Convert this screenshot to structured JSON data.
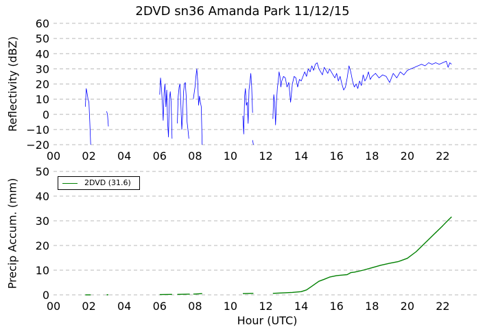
{
  "title": "2DVD sn36 Amanda Park 11/12/15",
  "chart_data": [
    {
      "type": "line",
      "ylabel": "Reflectivity (dBZ)",
      "xlabel": "",
      "xlim": [
        0,
        24
      ],
      "ylim": [
        -20,
        60
      ],
      "xticks": [
        "00",
        "02",
        "04",
        "06",
        "08",
        "10",
        "12",
        "14",
        "16",
        "18",
        "20",
        "22"
      ],
      "yticks": [
        "60",
        "50",
        "40",
        "30",
        "20",
        "10",
        "0",
        "−10",
        "−20"
      ],
      "grid": "horizontal dashed",
      "color": "#0000ff",
      "series": [
        {
          "segments": [
            [
              [
                1.8,
                5
              ],
              [
                1.85,
                17
              ],
              [
                1.9,
                14
              ],
              [
                1.95,
                10
              ],
              [
                2.0,
                8
              ],
              [
                2.05,
                -5
              ],
              [
                2.1,
                -20
              ]
            ],
            [
              [
                3.0,
                2
              ],
              [
                3.05,
                0
              ],
              [
                3.1,
                -8
              ]
            ],
            [
              [
                6.0,
                13
              ],
              [
                6.05,
                24
              ],
              [
                6.1,
                18
              ],
              [
                6.15,
                8
              ],
              [
                6.2,
                -4
              ],
              [
                6.25,
                14
              ],
              [
                6.3,
                20
              ],
              [
                6.35,
                5
              ],
              [
                6.4,
                16
              ],
              [
                6.45,
                -6
              ],
              [
                6.5,
                -15
              ],
              [
                6.55,
                10
              ],
              [
                6.6,
                15
              ],
              [
                6.65,
                8
              ],
              [
                6.7,
                -16
              ]
            ],
            [
              [
                7.0,
                -6
              ],
              [
                7.05,
                12
              ],
              [
                7.1,
                18
              ],
              [
                7.15,
                20
              ],
              [
                7.2,
                6
              ],
              [
                7.25,
                -10
              ],
              [
                7.3,
                0
              ],
              [
                7.35,
                15
              ],
              [
                7.4,
                20
              ],
              [
                7.45,
                21
              ],
              [
                7.5,
                12
              ],
              [
                7.55,
                -5
              ],
              [
                7.6,
                -10
              ],
              [
                7.65,
                -16
              ]
            ],
            [
              [
                7.9,
                10
              ],
              [
                8.0,
                18
              ],
              [
                8.05,
                25
              ],
              [
                8.1,
                30
              ],
              [
                8.15,
                22
              ],
              [
                8.2,
                6
              ],
              [
                8.25,
                12
              ],
              [
                8.3,
                8
              ],
              [
                8.35,
                5
              ],
              [
                8.4,
                -20
              ]
            ],
            [
              [
                10.7,
                -1
              ],
              [
                10.75,
                -13
              ],
              [
                10.8,
                12
              ],
              [
                10.85,
                17
              ],
              [
                10.9,
                6
              ],
              [
                10.95,
                8
              ],
              [
                11.0,
                -6
              ],
              [
                11.05,
                16
              ],
              [
                11.1,
                21
              ],
              [
                11.15,
                27
              ],
              [
                11.2,
                18
              ],
              [
                11.25,
                1
              ]
            ],
            [
              [
                11.25,
                -17
              ],
              [
                11.3,
                -20
              ]
            ],
            [
              [
                12.4,
                -3
              ],
              [
                12.45,
                13
              ],
              [
                12.5,
                8
              ],
              [
                12.55,
                -7
              ],
              [
                12.6,
                8
              ],
              [
                12.65,
                17
              ],
              [
                12.7,
                22
              ],
              [
                12.75,
                28
              ],
              [
                12.8,
                25
              ],
              [
                12.85,
                18
              ],
              [
                12.9,
                22
              ],
              [
                13.0,
                25
              ],
              [
                13.1,
                24
              ],
              [
                13.2,
                18
              ],
              [
                13.3,
                21
              ],
              [
                13.4,
                8
              ],
              [
                13.5,
                20
              ],
              [
                13.6,
                25
              ],
              [
                13.7,
                24
              ],
              [
                13.8,
                18
              ],
              [
                13.9,
                23
              ],
              [
                14.0,
                22
              ],
              [
                14.1,
                25
              ],
              [
                14.2,
                28
              ],
              [
                14.3,
                25
              ],
              [
                14.4,
                30
              ],
              [
                14.5,
                28
              ],
              [
                14.6,
                32
              ],
              [
                14.7,
                29
              ],
              [
                14.8,
                33
              ],
              [
                14.9,
                34
              ],
              [
                15.0,
                30
              ],
              [
                15.1,
                28
              ],
              [
                15.2,
                26
              ],
              [
                15.3,
                31
              ],
              [
                15.4,
                29
              ],
              [
                15.5,
                27
              ],
              [
                15.6,
                30
              ],
              [
                15.7,
                28
              ],
              [
                15.8,
                26
              ],
              [
                15.9,
                24
              ],
              [
                16.0,
                27
              ],
              [
                16.1,
                22
              ],
              [
                16.2,
                25
              ],
              [
                16.3,
                20
              ],
              [
                16.4,
                16
              ],
              [
                16.5,
                18
              ],
              [
                16.6,
                24
              ],
              [
                16.7,
                32
              ],
              [
                16.8,
                28
              ],
              [
                16.9,
                22
              ],
              [
                17.0,
                18
              ],
              [
                17.1,
                20
              ],
              [
                17.2,
                17
              ],
              [
                17.3,
                22
              ],
              [
                17.4,
                19
              ],
              [
                17.5,
                26
              ],
              [
                17.6,
                22
              ],
              [
                17.7,
                24
              ],
              [
                17.8,
                28
              ],
              [
                17.9,
                23
              ],
              [
                18.0,
                25
              ],
              [
                18.2,
                27
              ],
              [
                18.4,
                24
              ],
              [
                18.6,
                26
              ],
              [
                18.8,
                25
              ],
              [
                19.0,
                21
              ],
              [
                19.2,
                27
              ],
              [
                19.4,
                24
              ],
              [
                19.6,
                28
              ],
              [
                19.8,
                26
              ],
              [
                20.0,
                29
              ],
              [
                20.2,
                30
              ],
              [
                20.4,
                31
              ],
              [
                20.6,
                32
              ],
              [
                20.8,
                33
              ],
              [
                21.0,
                32
              ],
              [
                21.2,
                34
              ],
              [
                21.4,
                33
              ],
              [
                21.6,
                34
              ],
              [
                21.8,
                33
              ],
              [
                22.0,
                34
              ],
              [
                22.2,
                35
              ],
              [
                22.3,
                31
              ],
              [
                22.4,
                34
              ],
              [
                22.5,
                33
              ]
            ]
          ]
        }
      ]
    },
    {
      "type": "line",
      "ylabel": "Precip Accum. (mm)",
      "xlabel": "Hour (UTC)",
      "xlim": [
        0,
        24
      ],
      "ylim": [
        0,
        50
      ],
      "xticks": [
        "00",
        "02",
        "04",
        "06",
        "08",
        "10",
        "12",
        "14",
        "16",
        "18",
        "20",
        "22"
      ],
      "yticks": [
        "50",
        "40",
        "30",
        "20",
        "10",
        "0"
      ],
      "grid": "horizontal dashed",
      "legend": {
        "placement": "top-left",
        "entries": [
          {
            "label": "2DVD (31.6)",
            "color": "#008000"
          }
        ]
      },
      "series": [
        {
          "name": "2DVD (31.6)",
          "color": "#008000",
          "segments": [
            [
              [
                1.8,
                0.0
              ],
              [
                2.1,
                0.0
              ]
            ],
            [
              [
                3.0,
                0.0
              ],
              [
                3.1,
                0.05
              ]
            ],
            [
              [
                6.0,
                0.1
              ],
              [
                6.7,
                0.2
              ]
            ],
            [
              [
                7.0,
                0.2
              ],
              [
                7.7,
                0.3
              ]
            ],
            [
              [
                7.9,
                0.3
              ],
              [
                8.4,
                0.5
              ]
            ],
            [
              [
                10.7,
                0.5
              ],
              [
                11.3,
                0.6
              ]
            ],
            [
              [
                12.4,
                0.6
              ],
              [
                13.0,
                0.8
              ],
              [
                13.5,
                1.0
              ],
              [
                14.0,
                1.3
              ],
              [
                14.3,
                2.0
              ],
              [
                14.6,
                3.5
              ],
              [
                14.8,
                4.5
              ],
              [
                15.0,
                5.5
              ],
              [
                15.3,
                6.3
              ],
              [
                15.6,
                7.2
              ],
              [
                16.0,
                7.8
              ],
              [
                16.3,
                8.0
              ],
              [
                16.6,
                8.2
              ],
              [
                16.8,
                9.0
              ],
              [
                17.0,
                9.2
              ],
              [
                17.5,
                10.0
              ],
              [
                18.0,
                11.0
              ],
              [
                18.5,
                12.0
              ],
              [
                19.0,
                12.8
              ],
              [
                19.5,
                13.5
              ],
              [
                20.0,
                14.8
              ],
              [
                20.5,
                17.5
              ],
              [
                21.0,
                21.0
              ],
              [
                21.5,
                24.5
              ],
              [
                22.0,
                28.0
              ],
              [
                22.2,
                29.5
              ],
              [
                22.5,
                31.6
              ]
            ]
          ]
        }
      ]
    }
  ]
}
